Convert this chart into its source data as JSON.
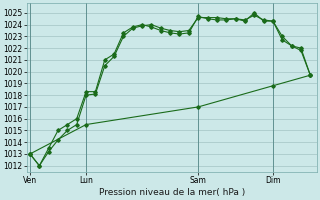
{
  "title": "",
  "xlabel": "Pression niveau de la mer( hPa )",
  "bg_color": "#cce8e8",
  "grid_color": "#99bbbb",
  "line_color": "#1a6b1a",
  "ylim": [
    1011.5,
    1025.8
  ],
  "yticks": [
    1012,
    1013,
    1014,
    1015,
    1016,
    1017,
    1018,
    1019,
    1020,
    1021,
    1022,
    1023,
    1024,
    1025
  ],
  "xtick_labels": [
    "Ven",
    "Lun",
    "Sam",
    "Dim"
  ],
  "xtick_pos": [
    0,
    18,
    54,
    78
  ],
  "vlines": [
    0,
    18,
    54,
    78
  ],
  "xlim": [
    -1,
    92
  ],
  "line1_x": [
    0,
    3,
    6,
    9,
    12,
    15,
    18,
    21,
    24,
    27,
    30,
    33,
    36,
    39,
    42,
    45,
    48,
    51,
    54,
    57,
    60,
    63,
    66,
    69,
    72,
    75,
    78,
    81,
    84,
    87,
    90
  ],
  "line1_y": [
    1013.0,
    1012.0,
    1013.2,
    1014.2,
    1015.0,
    1015.5,
    1018.0,
    1018.1,
    1020.5,
    1021.3,
    1023.0,
    1023.7,
    1023.9,
    1024.0,
    1023.7,
    1023.5,
    1023.4,
    1023.5,
    1024.6,
    1024.6,
    1024.6,
    1024.5,
    1024.5,
    1024.4,
    1024.8,
    1024.4,
    1024.3,
    1023.0,
    1022.2,
    1022.0,
    1019.7
  ],
  "line2_x": [
    0,
    3,
    6,
    9,
    12,
    15,
    18,
    21,
    24,
    27,
    30,
    33,
    36,
    39,
    42,
    45,
    48,
    51,
    54,
    57,
    60,
    63,
    66,
    69,
    72,
    75,
    78,
    81,
    84,
    87,
    90
  ],
  "line2_y": [
    1013.0,
    1012.0,
    1013.5,
    1015.0,
    1015.5,
    1016.0,
    1018.3,
    1018.3,
    1021.0,
    1021.5,
    1023.3,
    1023.8,
    1024.0,
    1023.8,
    1023.5,
    1023.3,
    1023.2,
    1023.3,
    1024.7,
    1024.5,
    1024.4,
    1024.4,
    1024.5,
    1024.3,
    1025.0,
    1024.3,
    1024.3,
    1022.7,
    1022.2,
    1021.8,
    1019.7
  ],
  "line3_x": [
    0,
    18,
    54,
    78,
    90
  ],
  "line3_y": [
    1013.0,
    1015.5,
    1017.0,
    1018.8,
    1019.7
  ],
  "figsize": [
    3.2,
    2.0
  ],
  "dpi": 100,
  "tick_fontsize": 5.5,
  "label_fontsize": 6.5
}
